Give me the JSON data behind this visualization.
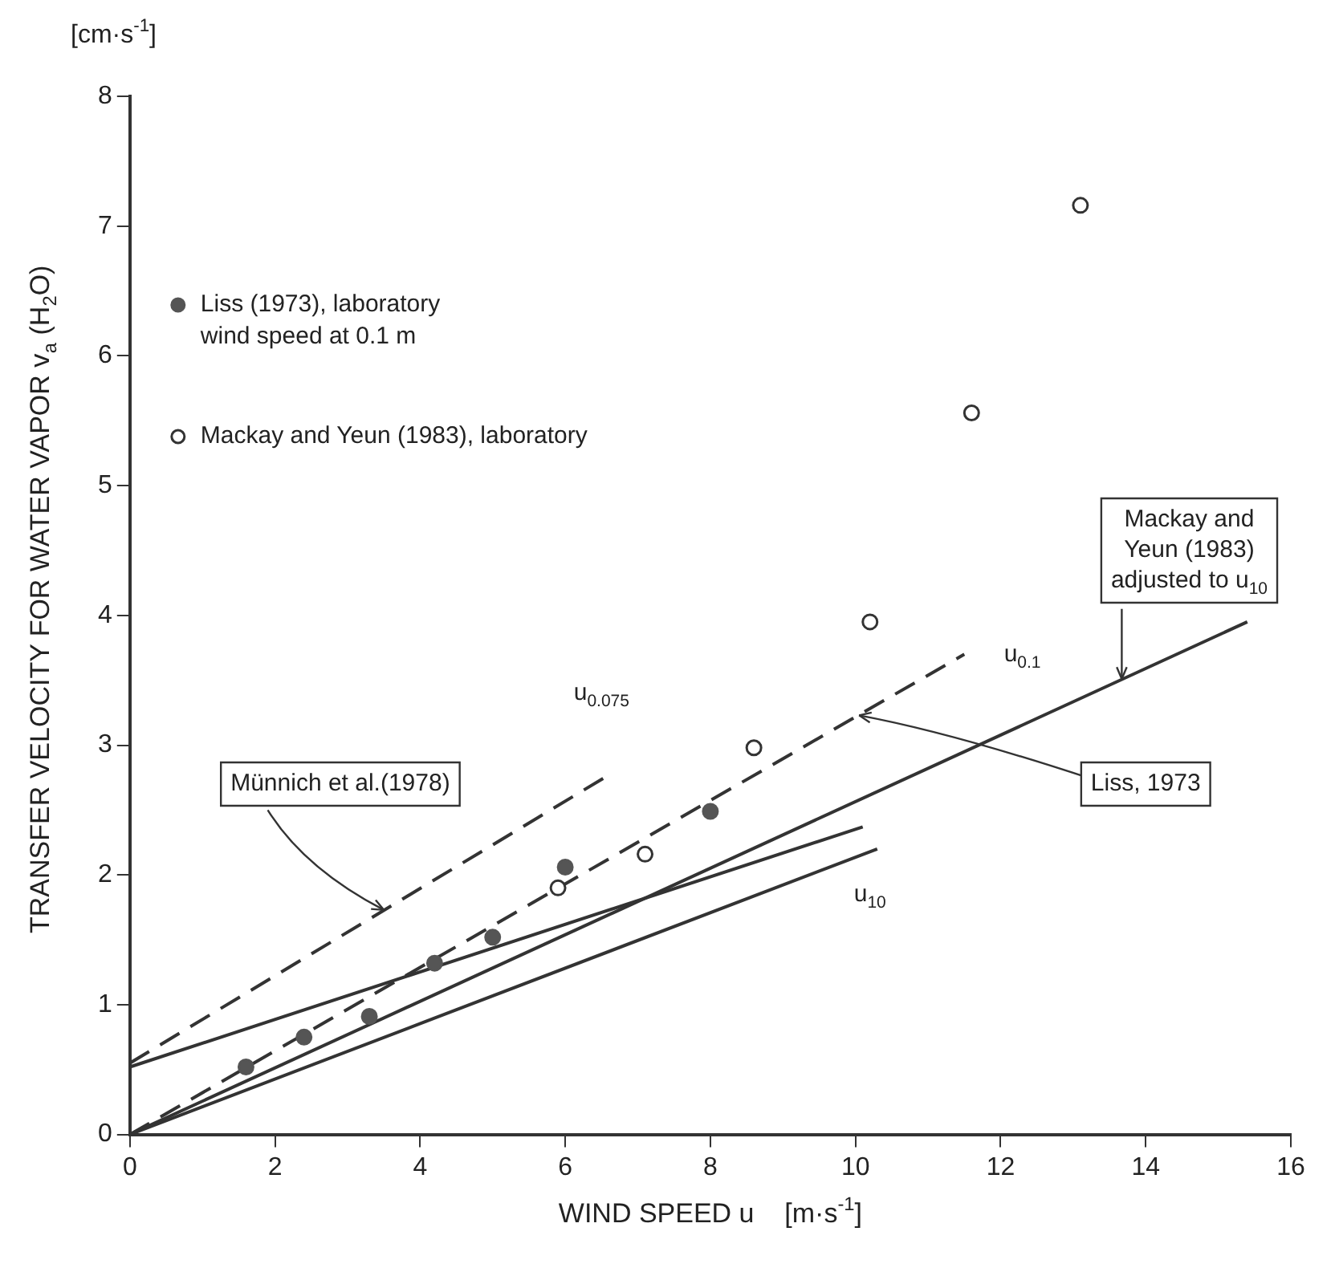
{
  "chart_data": {
    "type": "scatter",
    "xlabel": "WIND SPEED u    [m·s$^{-1}$]",
    "ylabel": "TRANSFER VELOCITY FOR WATER VAPOR v$_{a}$ (H$_{2}$O)",
    "xlim": [
      0,
      16
    ],
    "xticks": [
      0,
      2,
      4,
      6,
      8,
      10,
      12,
      14,
      16
    ],
    "ylim": [
      0,
      8
    ],
    "yticks": [
      0,
      1,
      2,
      3,
      4,
      5,
      6,
      7,
      8
    ],
    "grid": false,
    "legend": "top left",
    "marker": "circle",
    "series": [
      {
        "name": "Liss (1973), laboratory\nwind speed at 0.1 m",
        "type": "scatter",
        "color": "#555555",
        "x": [
          1.6,
          2.4,
          3.3,
          4.2,
          5.0,
          6.0,
          8.0
        ],
        "values": [
          0.52,
          0.75,
          0.91,
          1.32,
          1.52,
          2.06,
          2.49
        ]
      },
      {
        "name": "Mackay and Yeun (1983), laboratory",
        "type": "scatter",
        "color": "#333333",
        "x": [
          5.9,
          7.1,
          8.6,
          10.2,
          11.6,
          13.1
        ],
        "values": [
          1.9,
          2.16,
          2.98,
          3.95,
          5.56,
          7.16
        ]
      },
      {
        "type": "line",
        "color": "#333333",
        "line_style": "dashed",
        "marker": "none",
        "x": [
          0,
          6.6
        ],
        "values": [
          0.55,
          2.77
        ]
      },
      {
        "type": "line",
        "color": "#333333",
        "line_style": "dashed",
        "marker": "none",
        "x": [
          0,
          11.5
        ],
        "values": [
          0,
          3.7
        ]
      },
      {
        "type": "line",
        "color": "#333333",
        "line_style": "solid",
        "marker": "none",
        "x": [
          0,
          10.1
        ],
        "values": [
          0.52,
          2.37
        ]
      },
      {
        "type": "line",
        "color": "#333333",
        "line_style": "solid",
        "marker": "none",
        "x": [
          0,
          10.3
        ],
        "values": [
          0,
          2.2
        ]
      },
      {
        "type": "line",
        "color": "#333333",
        "line_style": "solid",
        "marker": "none",
        "x": [
          0,
          15.4
        ],
        "values": [
          0,
          3.95
        ]
      }
    ],
    "annotations": [
      "[cm·s$^{-1}$]",
      {
        "text": "Münnich et al.(1978)",
        "x": 3.5,
        "y": 1.73
      },
      "u$_{0.075}$",
      "u$_{0.1}$",
      {
        "text": "Liss, 1973",
        "x": 10.05,
        "y": 3.23
      },
      {
        "text": "Mackay and\nYeun (1983)\nadjusted to u$_{10}$",
        "x": 13.67,
        "y": 3.51
      },
      "u$_{10}$"
    ]
  }
}
